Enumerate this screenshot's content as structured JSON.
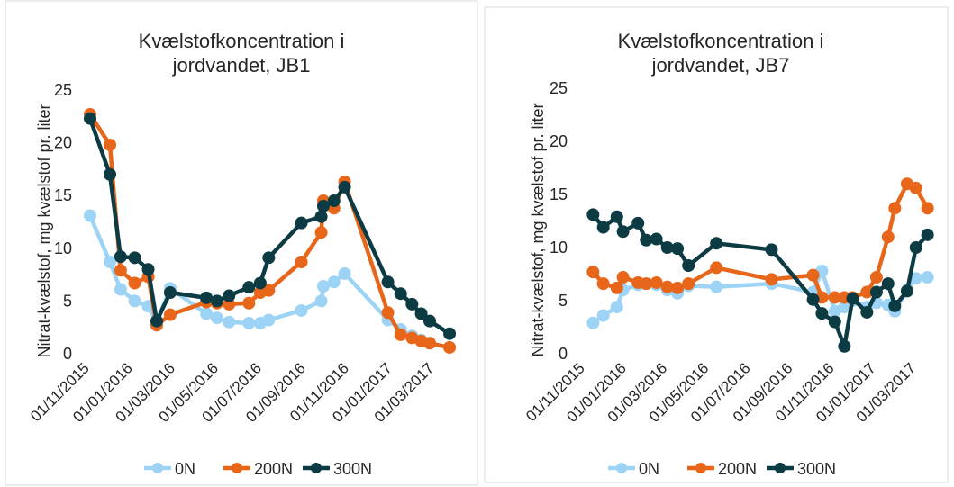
{
  "chart_data": [
    {
      "type": "line",
      "title": "Kvælstofkoncentration i jordvandet, JB1",
      "y_label": "Nitrat-kvælstof, mg kvælstof pr. liter",
      "x": [
        "01/11/2015",
        "29/11/2015",
        "14/12/2015",
        "03/01/2016",
        "22/01/2016",
        "03/02/2016",
        "22/02/2016",
        "13/04/2016",
        "28/04/2016",
        "15/05/2016",
        "12/06/2016",
        "28/06/2016",
        "10/07/2016",
        "25/08/2016",
        "22/09/2016",
        "25/09/2016",
        "10/10/2016",
        "25/10/2016",
        "25/12/2016",
        "12/01/2017",
        "28/01/2017",
        "10/02/2017",
        "22/02/2017",
        "22/03/2017"
      ],
      "xlim": [
        "01/11/2015",
        "10/04/2017"
      ],
      "xticks": [
        "01/11/2015",
        "01/01/2016",
        "01/03/2016",
        "01/05/2016",
        "01/07/2016",
        "01/09/2016",
        "01/11/2016",
        "01/01/2017",
        "01/03/2017"
      ],
      "ylim": [
        0,
        25
      ],
      "yticks": [
        0,
        5,
        10,
        15,
        20,
        25
      ],
      "grid": false,
      "legend": "bottom",
      "series": [
        {
          "name": "0N",
          "color": "#9dd3f5",
          "values": [
            13.1,
            8.7,
            6.1,
            5.0,
            4.5,
            3.0,
            6.2,
            3.8,
            3.4,
            3.0,
            2.9,
            2.9,
            3.2,
            4.1,
            5.0,
            6.4,
            6.8,
            7.6,
            3.2,
            2.3,
            1.7,
            1.3,
            1.0,
            0.6
          ]
        },
        {
          "name": "200N",
          "color": "#e8661a",
          "values": [
            22.7,
            19.8,
            7.9,
            6.7,
            7.3,
            2.7,
            3.7,
            4.9,
            4.8,
            4.7,
            4.8,
            5.8,
            6.0,
            8.7,
            11.5,
            14.5,
            13.8,
            16.3,
            3.9,
            1.8,
            1.5,
            1.2,
            1.0,
            0.6
          ]
        },
        {
          "name": "300N",
          "color": "#0d3b44",
          "values": [
            22.3,
            17.0,
            9.2,
            9.1,
            8.0,
            3.1,
            5.8,
            5.3,
            5.0,
            5.5,
            6.3,
            6.7,
            9.1,
            12.4,
            13.0,
            14.0,
            14.5,
            15.8,
            6.8,
            5.7,
            4.7,
            3.8,
            3.1,
            1.9
          ]
        }
      ]
    },
    {
      "type": "line",
      "title": "Kvælstofkoncentration i jordvandet, JB7",
      "y_label": "Nitrat-kvælstof, mg kvælstof pr. liter",
      "x": [
        "12/11/2015",
        "27/11/2015",
        "17/12/2015",
        "26/12/2015",
        "17/01/2016",
        "29/01/2016",
        "13/02/2016",
        "29/02/2016",
        "15/03/2016",
        "31/03/2016",
        "11/05/2016",
        "31/07/2016",
        "30/09/2016",
        "13/10/2016",
        "01/11/2016",
        "15/11/2016",
        "27/11/2016",
        "18/12/2016",
        "01/01/2017",
        "18/01/2017",
        "28/01/2017",
        "15/02/2017",
        "28/02/2017",
        "17/03/2017"
      ],
      "xlim": [
        "01/11/2015",
        "05/04/2017"
      ],
      "xticks": [
        "01/11/2015",
        "01/01/2016",
        "01/03/2016",
        "01/05/2016",
        "01/07/2016",
        "01/09/2016",
        "01/11/2016",
        "01/01/2017",
        "01/03/2017"
      ],
      "ylim": [
        0,
        25
      ],
      "yticks": [
        0,
        5,
        10,
        15,
        20,
        25
      ],
      "grid": false,
      "legend": "bottom",
      "series": [
        {
          "name": "0N",
          "color": "#9dd3f5",
          "values": [
            2.9,
            3.6,
            4.4,
            6.0,
            6.5,
            6.6,
            6.5,
            6.0,
            5.7,
            6.4,
            6.3,
            6.6,
            5.8,
            7.8,
            4.0,
            4.4,
            5.0,
            4.4,
            4.8,
            4.6,
            4.0,
            6.0,
            7.1,
            7.2
          ]
        },
        {
          "name": "200N",
          "color": "#e8661a",
          "values": [
            7.7,
            6.6,
            6.2,
            7.2,
            6.7,
            6.6,
            6.7,
            6.3,
            6.2,
            6.6,
            8.1,
            7.0,
            7.4,
            5.3,
            5.3,
            5.3,
            5.3,
            5.8,
            7.2,
            11.0,
            13.7,
            16.0,
            15.6,
            13.7
          ]
        },
        {
          "name": "300N",
          "color": "#0d3b44",
          "values": [
            13.1,
            11.9,
            12.9,
            11.5,
            12.3,
            10.7,
            10.8,
            10.0,
            9.9,
            8.3,
            10.4,
            9.8,
            5.1,
            3.8,
            3.0,
            0.7,
            5.2,
            3.9,
            5.8,
            6.6,
            4.5,
            5.9,
            10.0,
            11.2
          ]
        }
      ]
    }
  ]
}
